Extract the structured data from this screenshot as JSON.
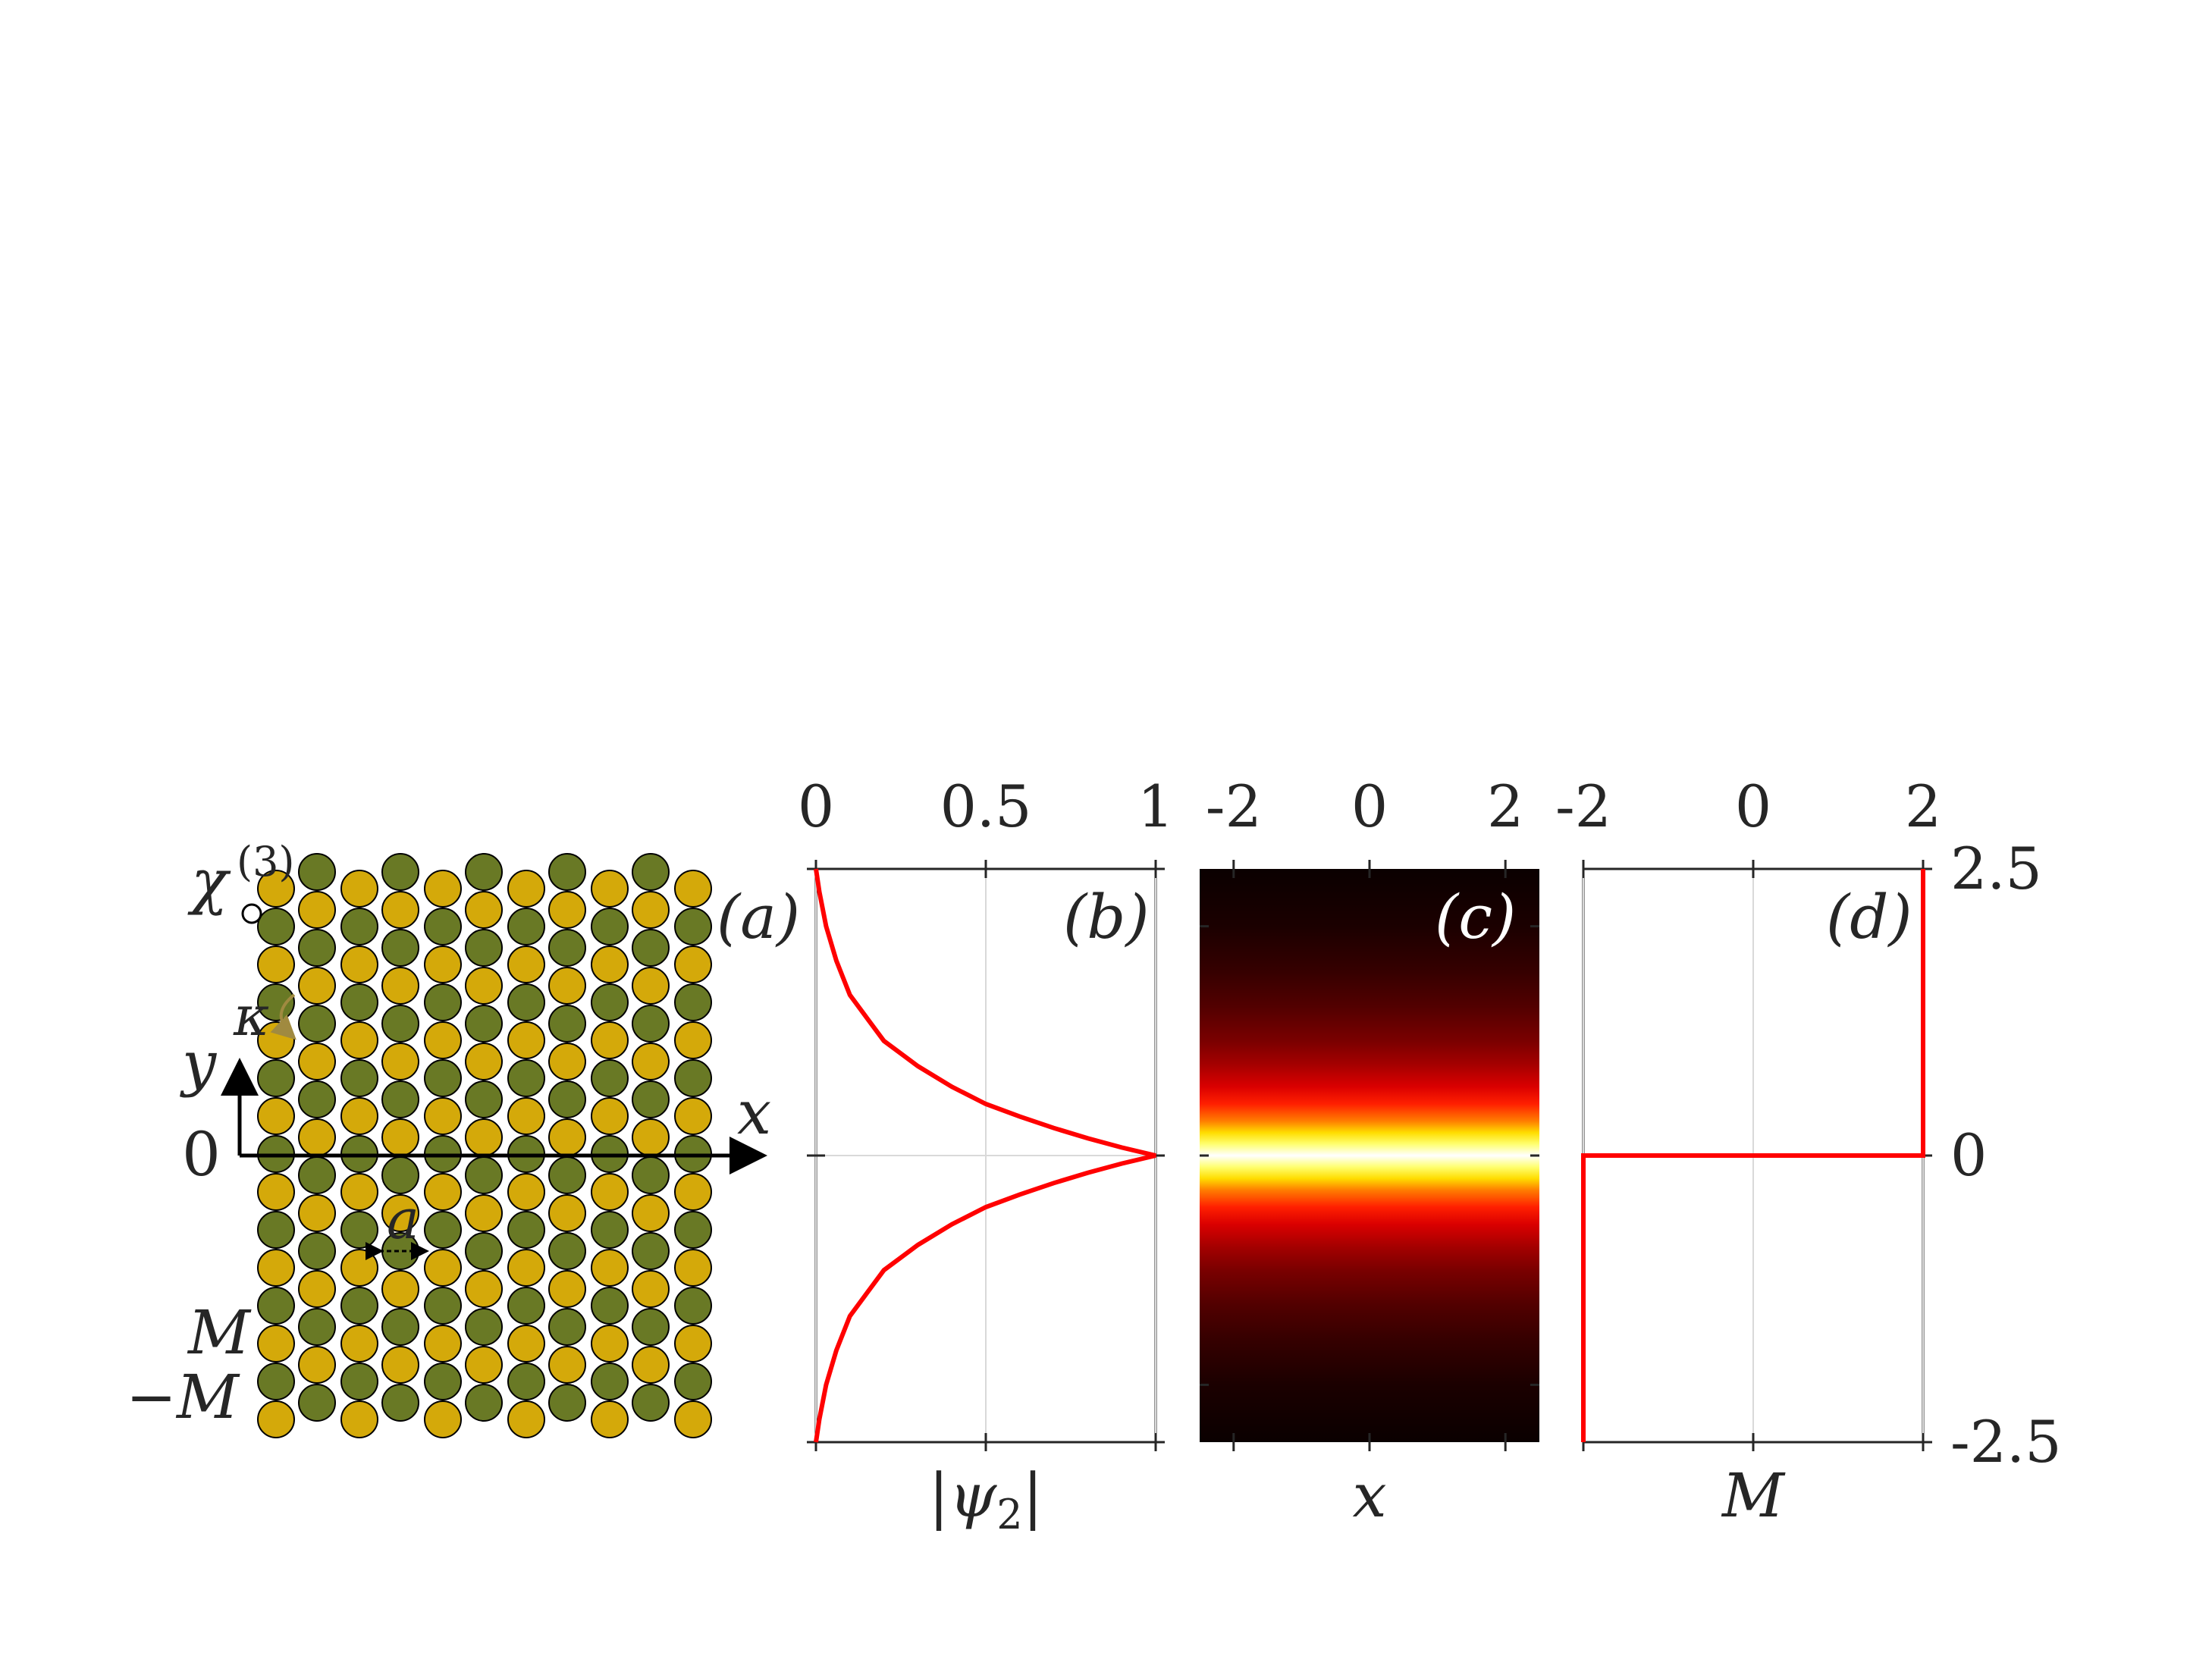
{
  "panel_a": {
    "label": "(a)",
    "chi_symbol": "χ",
    "chi_sup": "(3)",
    "kappa": "κ",
    "y_axis": "y",
    "x_axis": "x",
    "zero": "0",
    "spacing": "a",
    "m_pos": "M",
    "m_neg": "−M",
    "colors": {
      "yellow": "#d4a90a",
      "green": "#697925"
    }
  },
  "chart_data": [
    {
      "panel": "(b)",
      "type": "line",
      "xlabel_parts": [
        "|",
        "ψ",
        "2",
        "|"
      ],
      "xlim": [
        0,
        1
      ],
      "ylim": [
        -2.5,
        2.5
      ],
      "x_ticks": [
        "0",
        "0.5",
        "1"
      ],
      "x_tick_values": [
        0,
        0.5,
        1
      ],
      "grid": true,
      "series": [
        {
          "color": "#ff0000",
          "x": [
            0.0,
            0.01,
            0.03,
            0.06,
            0.1,
            0.15,
            0.2,
            0.3,
            0.4,
            0.5,
            0.6,
            0.7,
            0.8,
            0.9,
            1.0,
            0.9,
            0.8,
            0.7,
            0.6,
            0.5,
            0.4,
            0.3,
            0.2,
            0.15,
            0.1,
            0.06,
            0.03,
            0.01,
            0.0
          ],
          "y": [
            2.5,
            2.3,
            2.0,
            1.7,
            1.4,
            1.2,
            1.0,
            0.78,
            0.6,
            0.45,
            0.34,
            0.24,
            0.15,
            0.07,
            0.0,
            -0.07,
            -0.15,
            -0.24,
            -0.34,
            -0.45,
            -0.6,
            -0.78,
            -1.0,
            -1.2,
            -1.4,
            -1.7,
            -2.0,
            -2.3,
            -2.5
          ]
        }
      ]
    },
    {
      "panel": "(c)",
      "type": "heatmap",
      "xlabel": "x",
      "xlim": [
        -2.5,
        2.5
      ],
      "ylim": [
        -2.5,
        2.5
      ],
      "x_ticks": [
        "-2",
        "0",
        "2"
      ],
      "x_tick_values": [
        -2,
        0,
        2
      ],
      "colormap": "hot",
      "profile_y": [
        2.5,
        2.0,
        1.6,
        1.3,
        1.0,
        0.8,
        0.6,
        0.45,
        0.3,
        0.2,
        0.1,
        0.0,
        -0.1,
        -0.2,
        -0.3,
        -0.45,
        -0.6,
        -0.8,
        -1.0,
        -1.3,
        -1.6,
        -2.0,
        -2.5
      ],
      "profile_intensity": [
        0.0,
        0.04,
        0.08,
        0.12,
        0.18,
        0.24,
        0.32,
        0.42,
        0.56,
        0.7,
        0.86,
        1.0,
        0.86,
        0.7,
        0.56,
        0.42,
        0.32,
        0.24,
        0.18,
        0.12,
        0.08,
        0.04,
        0.0
      ]
    },
    {
      "panel": "(d)",
      "type": "line",
      "xlabel": "M",
      "xlim": [
        -2,
        2
      ],
      "ylim": [
        -2.5,
        2.5
      ],
      "x_ticks": [
        "-2",
        "0",
        "2"
      ],
      "x_tick_values": [
        -2,
        0,
        2
      ],
      "y_ticks": [
        "2.5",
        "0",
        "-2.5"
      ],
      "y_tick_values": [
        2.5,
        0,
        -2.5
      ],
      "grid": true,
      "series": [
        {
          "color": "#ff0000",
          "x": [
            -2,
            -2,
            2,
            2
          ],
          "y": [
            -2.5,
            0,
            0,
            2.5
          ]
        }
      ]
    }
  ]
}
